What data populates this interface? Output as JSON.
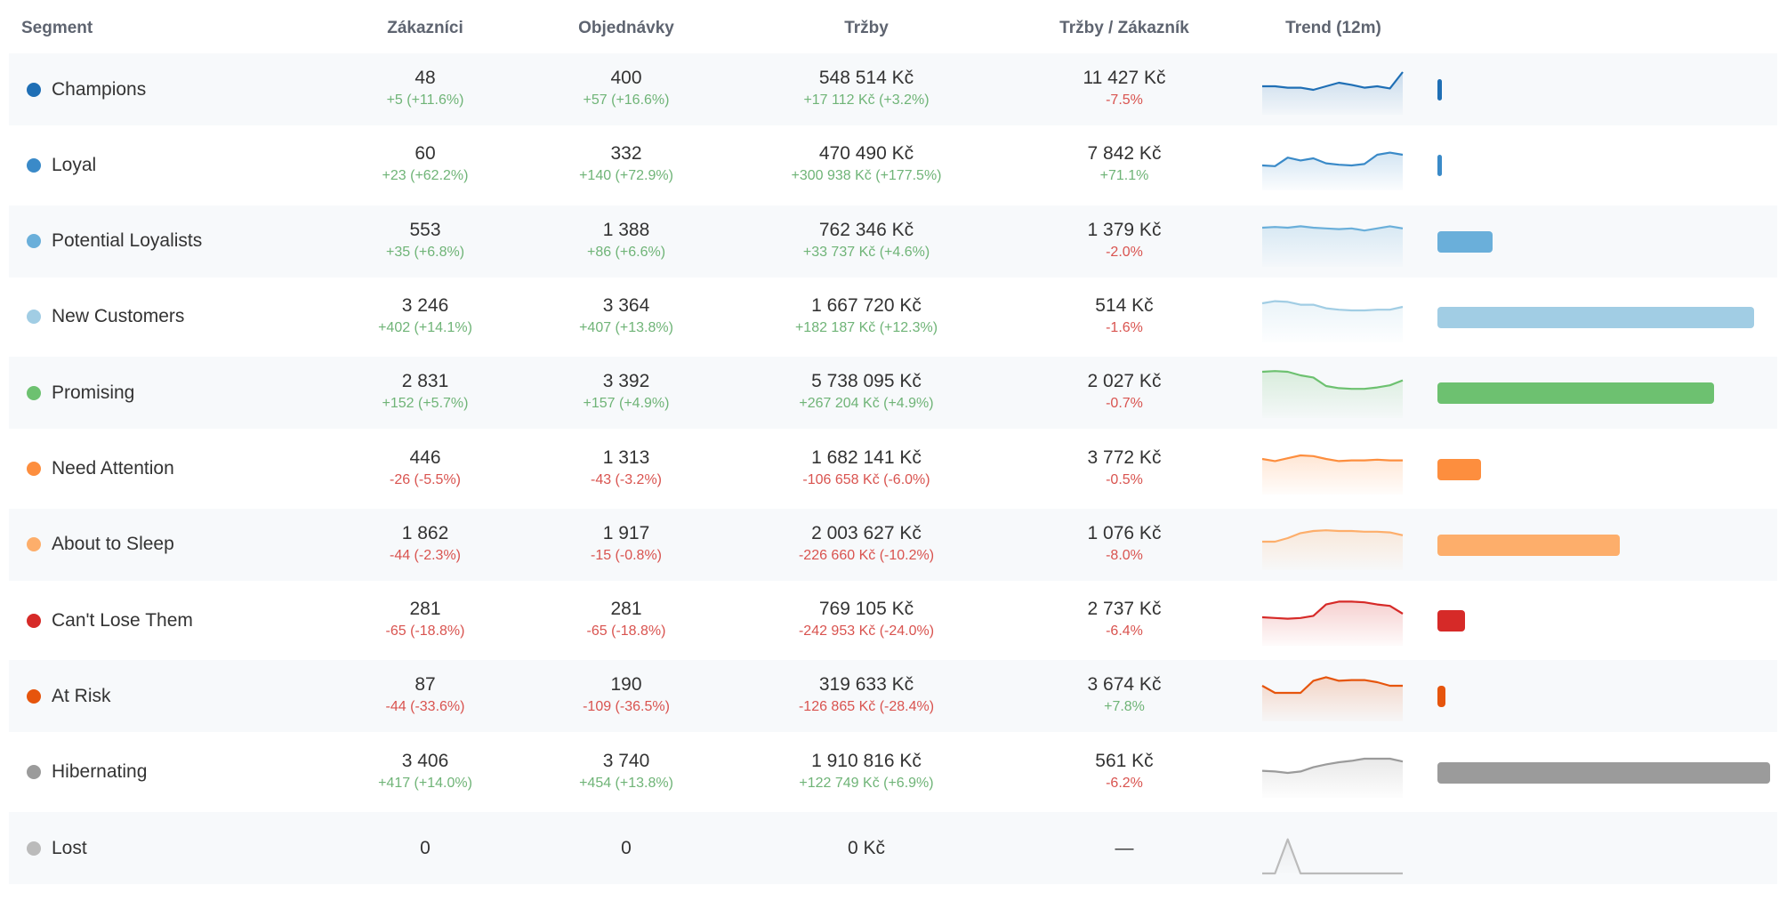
{
  "headers": {
    "segment": "Segment",
    "customers": "Zákazníci",
    "orders": "Objednávky",
    "revenue": "Tržby",
    "rev_per_customer": "Tržby / Zákazník",
    "trend": "Trend (12m)"
  },
  "rows": [
    {
      "name": "Champions",
      "color": "#1f6fb5",
      "customers": "48",
      "customers_delta": "+5 (+11.6%)",
      "customers_dir": "pos",
      "orders": "400",
      "orders_delta": "+57 (+16.6%)",
      "orders_dir": "pos",
      "revenue": "548 514 Kč",
      "revenue_delta": "+17 112 Kč (+3.2%)",
      "revenue_dir": "pos",
      "rpc": "11 427 Kč",
      "rpc_delta": "-7.5%",
      "rpc_dir": "neg",
      "trend": [
        40,
        40,
        38,
        38,
        35,
        40,
        45,
        42,
        38,
        40,
        37,
        60
      ],
      "share": 0.012
    },
    {
      "name": "Loyal",
      "color": "#3a8ac8",
      "customers": "60",
      "customers_delta": "+23 (+62.2%)",
      "customers_dir": "pos",
      "orders": "332",
      "orders_delta": "+140 (+72.9%)",
      "orders_dir": "pos",
      "revenue": "470 490 Kč",
      "revenue_delta": "+300 938 Kč (+177.5%)",
      "revenue_dir": "pos",
      "rpc": "7 842 Kč",
      "rpc_delta": "+71.1%",
      "rpc_dir": "pos",
      "trend": [
        35,
        34,
        46,
        42,
        45,
        38,
        36,
        35,
        37,
        50,
        53,
        50
      ],
      "share": 0.012
    },
    {
      "name": "Potential Loyalists",
      "color": "#6aafda",
      "customers": "553",
      "customers_delta": "+35 (+6.8%)",
      "customers_dir": "pos",
      "orders": "1 388",
      "orders_delta": "+86 (+6.6%)",
      "orders_dir": "pos",
      "revenue": "762 346 Kč",
      "revenue_delta": "+33 737 Kč (+4.6%)",
      "revenue_dir": "pos",
      "rpc": "1 379 Kč",
      "rpc_delta": "-2.0%",
      "rpc_dir": "neg",
      "trend": [
        55,
        56,
        55,
        57,
        55,
        54,
        53,
        54,
        51,
        54,
        57,
        54
      ],
      "share": 0.165
    },
    {
      "name": "New Customers",
      "color": "#a1cde4",
      "customers": "3 246",
      "customers_delta": "+402 (+14.1%)",
      "customers_dir": "pos",
      "orders": "3 364",
      "orders_delta": "+407 (+13.8%)",
      "orders_dir": "pos",
      "revenue": "1 667 720 Kč",
      "revenue_delta": "+182 187 Kč (+12.3%)",
      "revenue_dir": "pos",
      "rpc": "514 Kč",
      "rpc_delta": "-1.6%",
      "rpc_dir": "neg",
      "trend": [
        55,
        58,
        57,
        53,
        53,
        48,
        46,
        45,
        45,
        46,
        46,
        50
      ],
      "share": 0.953
    },
    {
      "name": "Promising",
      "color": "#6dc170",
      "customers": "2 831",
      "customers_delta": "+152 (+5.7%)",
      "customers_dir": "pos",
      "orders": "3 392",
      "orders_delta": "+157 (+4.9%)",
      "orders_dir": "pos",
      "revenue": "5 738 095 Kč",
      "revenue_delta": "+267 204 Kč (+4.9%)",
      "revenue_dir": "pos",
      "rpc": "2 027 Kč",
      "rpc_delta": "-0.7%",
      "rpc_dir": "neg",
      "trend": [
        65,
        66,
        65,
        60,
        57,
        45,
        42,
        41,
        41,
        43,
        46,
        53
      ],
      "share": 0.831
    },
    {
      "name": "Need Attention",
      "color": "#fd8e3e",
      "customers": "446",
      "customers_delta": "-26 (-5.5%)",
      "customers_dir": "neg",
      "orders": "1 313",
      "orders_delta": "-43 (-3.2%)",
      "orders_dir": "neg",
      "revenue": "1 682 141 Kč",
      "revenue_delta": "-106 658 Kč (-6.0%)",
      "revenue_dir": "neg",
      "rpc": "3 772 Kč",
      "rpc_delta": "-0.5%",
      "rpc_dir": "neg",
      "trend": [
        50,
        47,
        51,
        55,
        54,
        50,
        47,
        48,
        48,
        49,
        48,
        48
      ],
      "share": 0.131
    },
    {
      "name": "About to Sleep",
      "color": "#fdae6b",
      "customers": "1 862",
      "customers_delta": "-44 (-2.3%)",
      "customers_dir": "neg",
      "orders": "1 917",
      "orders_delta": "-15 (-0.8%)",
      "orders_dir": "neg",
      "revenue": "2 003 627 Kč",
      "revenue_delta": "-226 660 Kč (-10.2%)",
      "revenue_dir": "neg",
      "rpc": "1 076 Kč",
      "rpc_delta": "-8.0%",
      "rpc_dir": "neg",
      "trend": [
        40,
        40,
        45,
        52,
        55,
        56,
        55,
        55,
        54,
        54,
        53,
        49
      ],
      "share": 0.547
    },
    {
      "name": "Can't Lose Them",
      "color": "#d62a28",
      "customers": "281",
      "customers_delta": "-65 (-18.8%)",
      "customers_dir": "neg",
      "orders": "281",
      "orders_delta": "-65 (-18.8%)",
      "orders_dir": "neg",
      "revenue": "769 105 Kč",
      "revenue_delta": "-242 953 Kč (-24.0%)",
      "revenue_dir": "neg",
      "rpc": "2 737 Kč",
      "rpc_delta": "-6.4%",
      "rpc_dir": "neg",
      "trend": [
        40,
        39,
        38,
        39,
        42,
        58,
        62,
        62,
        61,
        58,
        56,
        45
      ],
      "share": 0.083
    },
    {
      "name": "At Risk",
      "color": "#e6550d",
      "customers": "87",
      "customers_delta": "-44 (-33.6%)",
      "customers_dir": "neg",
      "orders": "190",
      "orders_delta": "-109 (-36.5%)",
      "orders_dir": "neg",
      "revenue": "319 633 Kč",
      "revenue_delta": "-126 865 Kč (-28.4%)",
      "revenue_dir": "neg",
      "rpc": "3 674 Kč",
      "rpc_delta": "+7.8%",
      "rpc_dir": "pos",
      "trend": [
        50,
        40,
        40,
        40,
        57,
        62,
        57,
        58,
        58,
        55,
        50,
        50
      ],
      "share": 0.023
    },
    {
      "name": "Hibernating",
      "color": "#9b9b9b",
      "customers": "3 406",
      "customers_delta": "+417 (+14.0%)",
      "customers_dir": "pos",
      "orders": "3 740",
      "orders_delta": "+454 (+13.8%)",
      "orders_dir": "pos",
      "revenue": "1 910 816 Kč",
      "revenue_delta": "+122 749 Kč (+6.9%)",
      "revenue_dir": "pos",
      "rpc": "561 Kč",
      "rpc_delta": "-6.2%",
      "rpc_dir": "neg",
      "trend": [
        38,
        37,
        35,
        37,
        43,
        47,
        50,
        52,
        55,
        55,
        55,
        51
      ],
      "share": 1.0
    },
    {
      "name": "Lost",
      "color": "#bbbbbb",
      "customers": "0",
      "customers_delta": "",
      "customers_dir": "",
      "orders": "0",
      "orders_delta": "",
      "orders_dir": "",
      "revenue": "0 Kč",
      "revenue_delta": "",
      "revenue_dir": "",
      "rpc": "—",
      "rpc_delta": "",
      "rpc_dir": "",
      "trend": [
        0,
        0,
        48,
        0,
        0,
        0,
        0,
        0,
        0,
        0,
        0,
        0
      ],
      "share": 0
    }
  ]
}
